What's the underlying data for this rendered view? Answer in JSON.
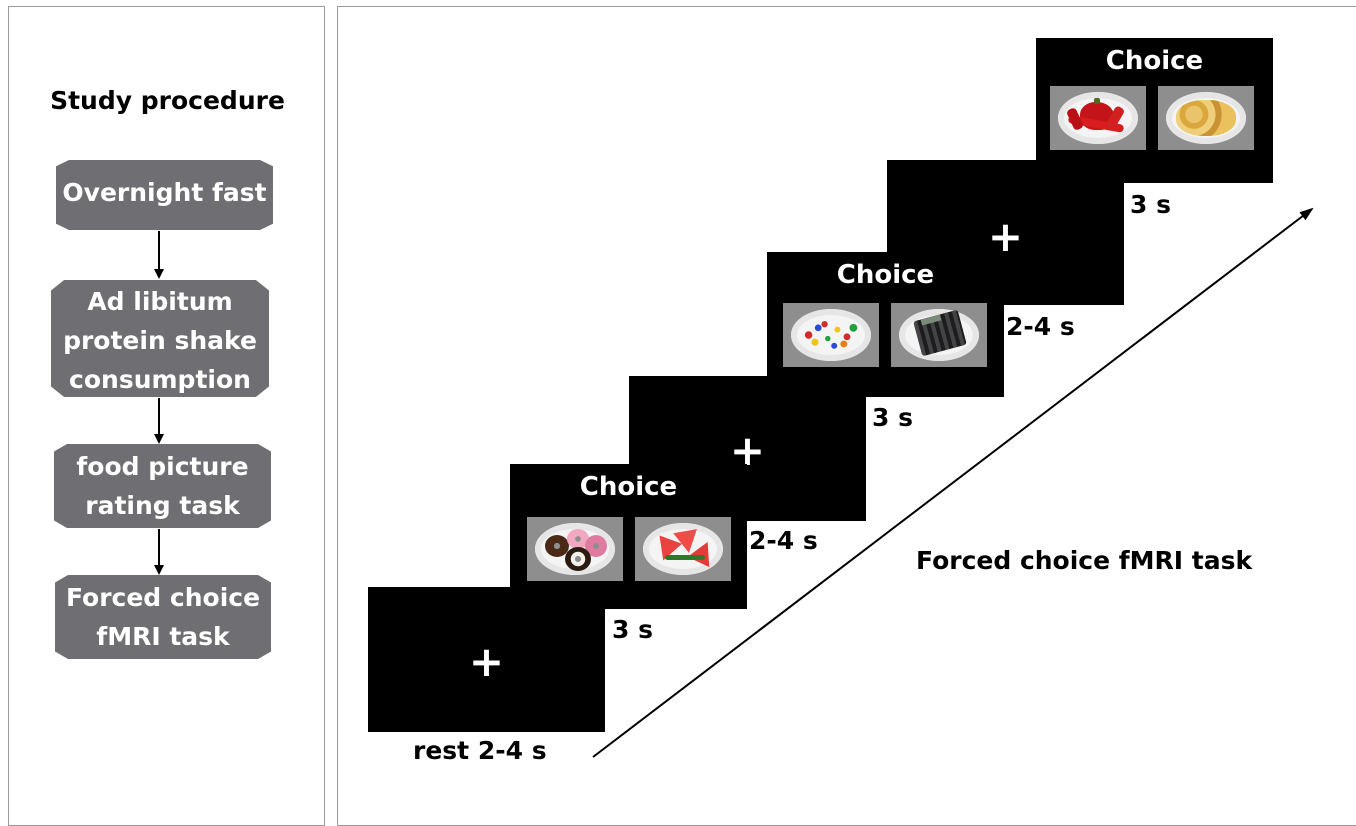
{
  "procedure": {
    "title": "Study procedure",
    "steps": [
      [
        "Overnight fast"
      ],
      [
        "Ad libitum",
        "protein shake",
        "consumption"
      ],
      [
        "food picture",
        "rating task"
      ],
      [
        "Forced choice",
        "fMRI task"
      ]
    ]
  },
  "task": {
    "label": "Forced choice fMRI task",
    "screens": [
      {
        "kind": "fixation",
        "symbol": "+",
        "duration": "rest 2-4 s"
      },
      {
        "kind": "choice",
        "title": "Choice",
        "items": [
          "donuts",
          "watermelon"
        ],
        "duration": "3 s"
      },
      {
        "kind": "fixation",
        "symbol": "+",
        "duration": "2-4 s"
      },
      {
        "kind": "choice",
        "title": "Choice",
        "items": [
          "thumbtacks",
          "calculator"
        ],
        "duration": "3 s"
      },
      {
        "kind": "fixation",
        "symbol": "+",
        "duration": "2-4 s"
      },
      {
        "kind": "choice",
        "title": "Choice",
        "items": [
          "red pepper",
          "potato chips"
        ],
        "duration": "3 s"
      }
    ]
  }
}
